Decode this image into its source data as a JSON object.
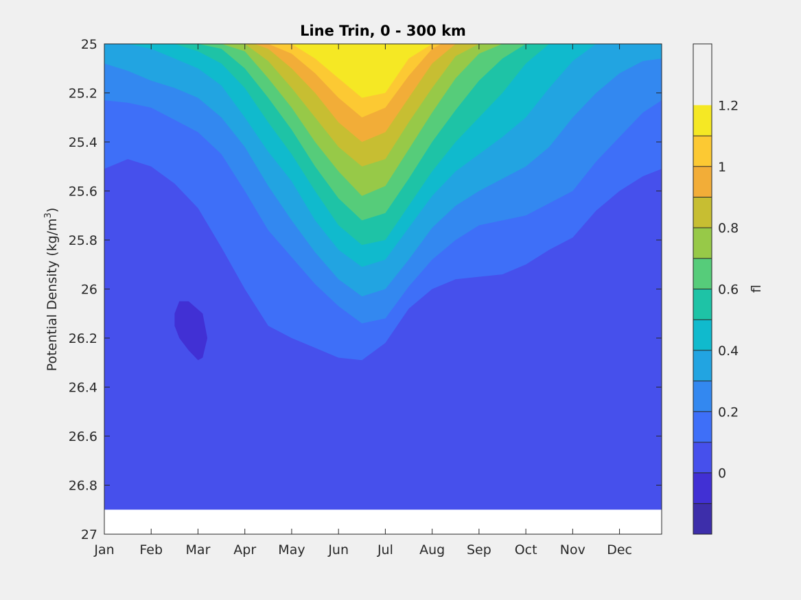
{
  "chart_data": {
    "type": "filled-contour",
    "title": "Line Trin, 0 - 300 km",
    "ylabel": {
      "main": "Potential Density (kg/m",
      "superscript": "3",
      "close": ")"
    },
    "x_ticks": [
      "Jan",
      "Feb",
      "Mar",
      "Apr",
      "May",
      "Jun",
      "Jul",
      "Aug",
      "Sep",
      "Oct",
      "Nov",
      "Dec"
    ],
    "x_tick_months": [
      1,
      2,
      3,
      4,
      5,
      6,
      7,
      8,
      9,
      10,
      11,
      12
    ],
    "xlim_months": [
      1,
      12.9
    ],
    "y_ticks": [
      "25",
      "25.2",
      "25.4",
      "25.6",
      "25.8",
      "26",
      "26.2",
      "26.4",
      "26.6",
      "26.8",
      "27"
    ],
    "y_tick_values": [
      25,
      25.2,
      25.4,
      25.6,
      25.8,
      26,
      26.2,
      26.4,
      26.6,
      26.8,
      27
    ],
    "ylim": [
      25,
      27
    ],
    "y_reversed": true,
    "data_bottom_density": 26.9,
    "colorbar": {
      "label": "fl",
      "range": [
        -0.2,
        1.4
      ],
      "tick_labels": [
        "0",
        "0.2",
        "0.4",
        "0.6",
        "0.8",
        "1",
        "1.2"
      ],
      "tick_values": [
        0,
        0.2,
        0.4,
        0.6,
        0.8,
        1,
        1.2
      ],
      "level_step": 0.1,
      "colors": [
        "#3d2eaa",
        "#4130d4",
        "#4650ec",
        "#3e6ff8",
        "#3388f0",
        "#22a4e1",
        "#10bacd",
        "#1ec3a6",
        "#56cc7a",
        "#97c948",
        "#c7be32",
        "#f2ad38",
        "#fcc933",
        "#f5e824"
      ]
    },
    "contours": [
      {
        "level": 0.0,
        "month_density_pairs": [
          [
            1,
            25.51
          ],
          [
            1.5,
            25.47
          ],
          [
            2,
            25.5
          ],
          [
            2.5,
            25.57
          ],
          [
            3,
            25.67
          ],
          [
            3.5,
            25.83
          ],
          [
            4,
            26.0
          ],
          [
            4.5,
            26.15
          ],
          [
            5,
            26.2
          ],
          [
            5.5,
            26.24
          ],
          [
            6,
            26.28
          ],
          [
            6.5,
            26.29
          ],
          [
            7,
            26.22
          ],
          [
            7.5,
            26.08
          ],
          [
            8,
            26.0
          ],
          [
            8.5,
            25.96
          ],
          [
            9,
            25.95
          ],
          [
            9.5,
            25.94
          ],
          [
            10,
            25.9
          ],
          [
            10.5,
            25.84
          ],
          [
            11,
            25.79
          ],
          [
            11.5,
            25.68
          ],
          [
            12,
            25.6
          ],
          [
            12.5,
            25.54
          ],
          [
            12.9,
            25.51
          ]
        ]
      },
      {
        "level": 0.1,
        "month_density_pairs": [
          [
            1,
            25.23
          ],
          [
            1.5,
            25.24
          ],
          [
            2,
            25.26
          ],
          [
            2.5,
            25.31
          ],
          [
            3,
            25.36
          ],
          [
            3.5,
            25.45
          ],
          [
            4,
            25.6
          ],
          [
            4.5,
            25.76
          ],
          [
            5,
            25.87
          ],
          [
            5.5,
            25.98
          ],
          [
            6,
            26.07
          ],
          [
            6.5,
            26.14
          ],
          [
            7,
            26.12
          ],
          [
            7.5,
            25.99
          ],
          [
            8,
            25.88
          ],
          [
            8.5,
            25.8
          ],
          [
            9,
            25.74
          ],
          [
            9.5,
            25.72
          ],
          [
            10,
            25.7
          ],
          [
            10.5,
            25.65
          ],
          [
            11,
            25.6
          ],
          [
            11.5,
            25.48
          ],
          [
            12,
            25.38
          ],
          [
            12.5,
            25.28
          ],
          [
            12.9,
            25.23
          ]
        ]
      },
      {
        "level": 0.2,
        "month_density_pairs": [
          [
            1,
            25.08
          ],
          [
            1.5,
            25.11
          ],
          [
            2,
            25.15
          ],
          [
            2.5,
            25.18
          ],
          [
            3,
            25.22
          ],
          [
            3.5,
            25.3
          ],
          [
            4,
            25.42
          ],
          [
            4.5,
            25.58
          ],
          [
            5,
            25.72
          ],
          [
            5.5,
            25.85
          ],
          [
            6,
            25.96
          ],
          [
            6.5,
            26.03
          ],
          [
            7,
            26.0
          ],
          [
            7.5,
            25.88
          ],
          [
            8,
            25.75
          ],
          [
            8.5,
            25.66
          ],
          [
            9,
            25.6
          ],
          [
            9.5,
            25.55
          ],
          [
            10,
            25.5
          ],
          [
            10.5,
            25.42
          ],
          [
            11,
            25.3
          ],
          [
            11.5,
            25.2
          ],
          [
            12,
            25.12
          ],
          [
            12.5,
            25.07
          ],
          [
            12.9,
            25.06
          ]
        ]
      },
      {
        "level": 0.3,
        "month_density_pairs": [
          [
            1.5,
            25.0
          ],
          [
            2,
            25.02
          ],
          [
            2.5,
            25.06
          ],
          [
            3,
            25.1
          ],
          [
            3.5,
            25.17
          ],
          [
            4,
            25.3
          ],
          [
            4.5,
            25.44
          ],
          [
            5,
            25.56
          ],
          [
            5.5,
            25.72
          ],
          [
            6,
            25.84
          ],
          [
            6.5,
            25.91
          ],
          [
            7,
            25.88
          ],
          [
            7.5,
            25.75
          ],
          [
            8,
            25.62
          ],
          [
            8.5,
            25.52
          ],
          [
            9,
            25.45
          ],
          [
            9.5,
            25.38
          ],
          [
            10,
            25.3
          ],
          [
            10.5,
            25.18
          ],
          [
            11,
            25.07
          ],
          [
            11.5,
            25.0
          ]
        ]
      },
      {
        "level": 0.4,
        "month_density_pairs": [
          [
            2.5,
            25.0
          ],
          [
            3,
            25.03
          ],
          [
            3.5,
            25.08
          ],
          [
            4,
            25.18
          ],
          [
            4.5,
            25.32
          ],
          [
            5,
            25.45
          ],
          [
            5.5,
            25.6
          ],
          [
            6,
            25.74
          ],
          [
            6.5,
            25.82
          ],
          [
            7,
            25.8
          ],
          [
            7.5,
            25.66
          ],
          [
            8,
            25.52
          ],
          [
            8.5,
            25.4
          ],
          [
            9,
            25.3
          ],
          [
            9.5,
            25.2
          ],
          [
            10,
            25.08
          ],
          [
            10.5,
            25.0
          ]
        ]
      },
      {
        "level": 0.5,
        "month_density_pairs": [
          [
            3,
            25.0
          ],
          [
            3.5,
            25.02
          ],
          [
            4,
            25.1
          ],
          [
            4.5,
            25.22
          ],
          [
            5,
            25.35
          ],
          [
            5.5,
            25.5
          ],
          [
            6,
            25.63
          ],
          [
            6.5,
            25.72
          ],
          [
            7,
            25.69
          ],
          [
            7.5,
            25.55
          ],
          [
            8,
            25.4
          ],
          [
            8.5,
            25.27
          ],
          [
            9,
            25.15
          ],
          [
            9.5,
            25.06
          ],
          [
            10,
            25.0
          ]
        ]
      },
      {
        "level": 0.6,
        "month_density_pairs": [
          [
            3.5,
            25.0
          ],
          [
            4,
            25.03
          ],
          [
            4.5,
            25.14
          ],
          [
            5,
            25.26
          ],
          [
            5.5,
            25.4
          ],
          [
            6,
            25.52
          ],
          [
            6.5,
            25.62
          ],
          [
            7,
            25.58
          ],
          [
            7.5,
            25.43
          ],
          [
            8,
            25.28
          ],
          [
            8.5,
            25.14
          ],
          [
            9,
            25.04
          ],
          [
            9.5,
            25.0
          ]
        ]
      },
      {
        "level": 0.7,
        "month_density_pairs": [
          [
            4,
            25.0
          ],
          [
            4.5,
            25.07
          ],
          [
            5,
            25.18
          ],
          [
            5.5,
            25.3
          ],
          [
            6,
            25.42
          ],
          [
            6.5,
            25.5
          ],
          [
            7,
            25.47
          ],
          [
            7.5,
            25.32
          ],
          [
            8,
            25.18
          ],
          [
            8.5,
            25.05
          ],
          [
            9,
            25.0
          ]
        ]
      },
      {
        "level": 0.8,
        "month_density_pairs": [
          [
            4.2,
            25.0
          ],
          [
            4.5,
            25.02
          ],
          [
            5,
            25.1
          ],
          [
            5.5,
            25.2
          ],
          [
            6,
            25.32
          ],
          [
            6.5,
            25.4
          ],
          [
            7,
            25.36
          ],
          [
            7.5,
            25.22
          ],
          [
            8,
            25.08
          ],
          [
            8.5,
            25.0
          ]
        ]
      },
      {
        "level": 0.9,
        "month_density_pairs": [
          [
            4.5,
            25.0
          ],
          [
            5,
            25.04
          ],
          [
            5.5,
            25.12
          ],
          [
            6,
            25.22
          ],
          [
            6.5,
            25.3
          ],
          [
            7,
            25.26
          ],
          [
            7.5,
            25.13
          ],
          [
            8,
            25.02
          ],
          [
            8.2,
            25.0
          ]
        ]
      },
      {
        "level": 1.0,
        "month_density_pairs": [
          [
            5,
            25.0
          ],
          [
            5.5,
            25.06
          ],
          [
            6,
            25.14
          ],
          [
            6.5,
            25.22
          ],
          [
            7,
            25.2
          ],
          [
            7.5,
            25.06
          ],
          [
            8,
            25.0
          ]
        ]
      },
      {
        "level": 1.1,
        "month_density_pairs": [
          [
            5.6,
            25.0
          ],
          [
            6,
            25.06
          ],
          [
            6.5,
            25.13
          ],
          [
            7,
            25.14
          ],
          [
            7.5,
            25.02
          ],
          [
            7.8,
            25.0
          ]
        ]
      },
      {
        "level": 1.2,
        "month_density_pairs": [
          [
            6.3,
            25.0
          ],
          [
            6.6,
            25.02
          ],
          [
            7,
            25.02
          ],
          [
            7.3,
            25.0
          ]
        ]
      }
    ],
    "local_minimum": {
      "level": -0.1,
      "month_density_pairs": [
        [
          2.5,
          26.1
        ],
        [
          2.6,
          26.05
        ],
        [
          2.8,
          26.05
        ],
        [
          3.1,
          26.1
        ],
        [
          3.2,
          26.2
        ],
        [
          3.1,
          26.28
        ],
        [
          3,
          26.29
        ],
        [
          2.8,
          26.25
        ],
        [
          2.6,
          26.2
        ],
        [
          2.5,
          26.15
        ]
      ]
    }
  }
}
